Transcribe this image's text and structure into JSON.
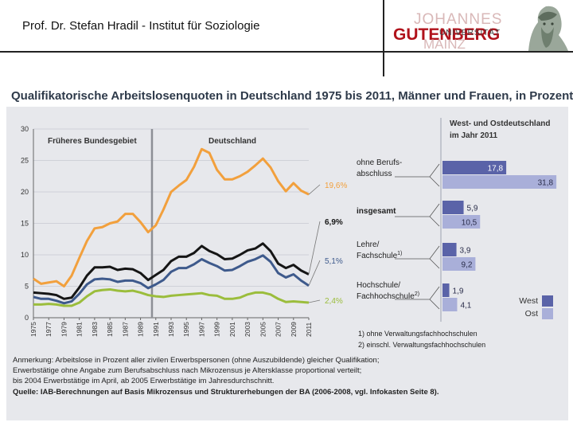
{
  "header": {
    "title": "Prof. Dr. Stefan Hradil - Institut für Soziologie",
    "logo_line1": "JOHANNES",
    "logo_line2": "GUTENBERG",
    "logo_line3": "UNIVERSITÄT",
    "logo_line4": "MAINZ"
  },
  "colors": {
    "orange": "#f2a03d",
    "black": "#151515",
    "navy": "#3e5a8c",
    "green": "#9bbd3c",
    "west": "#5a63a8",
    "ost": "#a9afd9"
  },
  "chart_data": [
    {
      "type": "line",
      "title": "Qualifikatorische Arbeitslosenquoten in Deutschland 1975 bis 2011, Männer und Frauen, in Prozent",
      "region_labels": [
        "Früheres Bundesgebiet",
        "Deutschland"
      ],
      "ylim": [
        0,
        30
      ],
      "y_ticks": [
        "0",
        "5",
        "10",
        "15",
        "20",
        "25",
        "30"
      ],
      "x": [
        1975,
        1976,
        1977,
        1978,
        1979,
        1980,
        1981,
        1982,
        1983,
        1984,
        1985,
        1986,
        1987,
        1988,
        1989,
        1990,
        1991,
        1992,
        1993,
        1994,
        1995,
        1996,
        1997,
        1998,
        1999,
        2000,
        2001,
        2002,
        2003,
        2004,
        2005,
        2006,
        2007,
        2008,
        2009,
        2010,
        2011
      ],
      "x_ticks": [
        "1975",
        "1977",
        "1979",
        "1981",
        "1983",
        "1985",
        "1987",
        "1989",
        "1991",
        "1993",
        "1995",
        "1997",
        "1999",
        "2001",
        "2003",
        "2005",
        "2007",
        "2009",
        "2011"
      ],
      "series": [
        {
          "name": "ohne Berufsabschluss",
          "end_label": "19,6%",
          "values": [
            6.2,
            5.4,
            5.6,
            5.8,
            5.0,
            6.7,
            9.5,
            12.2,
            14.2,
            14.4,
            15.0,
            15.3,
            16.5,
            16.5,
            15.2,
            13.6,
            14.7,
            17.2,
            20.0,
            21.0,
            21.9,
            24.0,
            26.8,
            26.2,
            23.5,
            22.0,
            22.0,
            22.5,
            23.2,
            24.2,
            25.3,
            23.9,
            21.7,
            20.1,
            21.4,
            20.2,
            19.6
          ]
        },
        {
          "name": "insgesamt",
          "end_label": "6,9%",
          "values": [
            4.0,
            3.9,
            3.8,
            3.6,
            3.0,
            3.2,
            4.8,
            6.7,
            8.0,
            8.0,
            8.1,
            7.6,
            7.8,
            7.7,
            7.1,
            6.0,
            6.8,
            7.6,
            9.0,
            9.7,
            9.7,
            10.3,
            11.4,
            10.6,
            10.1,
            9.3,
            9.4,
            10.0,
            10.7,
            11.0,
            11.8,
            10.6,
            8.6,
            7.9,
            8.4,
            7.5,
            6.9
          ]
        },
        {
          "name": "Lehre/Fachschule",
          "end_label": "5,1%",
          "values": [
            3.3,
            3.0,
            3.0,
            2.7,
            2.3,
            2.6,
            3.8,
            5.3,
            6.1,
            6.2,
            6.1,
            5.7,
            5.9,
            5.9,
            5.5,
            4.7,
            5.3,
            6.0,
            7.3,
            7.9,
            7.9,
            8.5,
            9.3,
            8.7,
            8.2,
            7.5,
            7.6,
            8.2,
            8.9,
            9.3,
            9.9,
            8.9,
            7.1,
            6.4,
            6.9,
            5.9,
            5.1
          ]
        },
        {
          "name": "Hochschule/Fachhochschule",
          "end_label": "2,4%",
          "values": [
            2.1,
            2.1,
            2.2,
            2.1,
            1.9,
            1.9,
            2.4,
            3.4,
            4.2,
            4.4,
            4.5,
            4.3,
            4.2,
            4.3,
            4.0,
            3.6,
            3.4,
            3.3,
            3.5,
            3.6,
            3.7,
            3.8,
            3.9,
            3.6,
            3.5,
            3.0,
            3.0,
            3.2,
            3.7,
            4.0,
            4.0,
            3.7,
            3.0,
            2.5,
            2.6,
            2.5,
            2.4
          ]
        }
      ]
    },
    {
      "type": "bar",
      "title": "West- und Ostdeutschland im Jahr 2011",
      "categories": [
        "ohne Berufsabschluss",
        "insgesamt",
        "Lehre/Fachschule",
        "Hochschule/Fachhochschule"
      ],
      "category_lines": [
        [
          "ohne Berufs-",
          "abschluss"
        ],
        [
          "insgesamt"
        ],
        [
          "Lehre/",
          "Fachschule"
        ],
        [
          "Hochschule/",
          "Fachhochschule"
        ]
      ],
      "category_superscripts": [
        "",
        "",
        "1)",
        "2)"
      ],
      "series": [
        {
          "name": "West",
          "values": [
            17.8,
            5.9,
            3.9,
            1.9
          ],
          "labels": [
            "17,8",
            "5,9",
            "3,9",
            "1,9"
          ]
        },
        {
          "name": "Ost",
          "values": [
            31.8,
            10.5,
            9.2,
            4.1
          ],
          "labels": [
            "31,8",
            "10,5",
            "9,2",
            "4,1"
          ]
        }
      ],
      "legend": [
        "West",
        "Ost"
      ]
    }
  ],
  "footnotes": [
    "1) ohne Verwaltungsfachhochschulen",
    "2) einschl. Verwaltungsfachhochschulen"
  ],
  "notes": {
    "line1": "Anmerkung: Arbeitslose in Prozent aller zivilen Erwerbspersonen (ohne Auszubildende) gleicher Qualifikation;",
    "line2": "Erwerbstätige ohne Angabe zum Berufsabschluss nach Mikrozensus je Altersklasse proportional verteilt;",
    "line3": "bis 2004 Erwerbstätige im April, ab 2005 Erwerbstätige im Jahresdurchschnitt.",
    "quelle": "Quelle: IAB-Berechnungen auf Basis Mikrozensus und Strukturerhebungen der BA (2006-2008, vgl. Infokasten Seite 8)."
  }
}
